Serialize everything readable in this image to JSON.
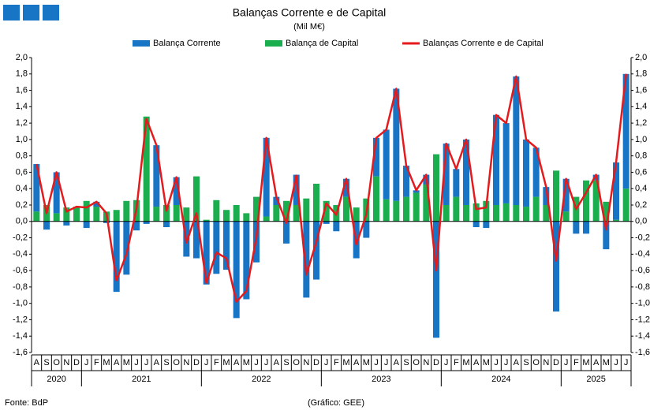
{
  "chart_data": {
    "type": "bar",
    "title": "Balanças Corrente e de Capital",
    "subtitle": "(Mil M€)",
    "source": "Fonte: BdP",
    "credit": "(Gráfico: GEE)",
    "categories": [
      "A",
      "S",
      "O",
      "N",
      "D",
      "J",
      "F",
      "M",
      "A",
      "M",
      "J",
      "J",
      "A",
      "S",
      "O",
      "N",
      "D",
      "J",
      "F",
      "M",
      "A",
      "M",
      "J",
      "J",
      "A",
      "S",
      "O",
      "N",
      "D",
      "J",
      "F",
      "M",
      "A",
      "M",
      "J",
      "J",
      "A",
      "S",
      "O",
      "N",
      "D",
      "J",
      "F",
      "M",
      "A",
      "M",
      "J",
      "J",
      "A",
      "S",
      "O",
      "N",
      "D",
      "J",
      "F",
      "M",
      "A",
      "M",
      "J",
      "J"
    ],
    "year_labels": [
      "2020",
      "2021",
      "2022",
      "2023",
      "2024",
      "2025"
    ],
    "series": [
      {
        "name": "Balança Corrente",
        "color": "#1874c4",
        "type": "bar",
        "values": [
          0.58,
          -0.1,
          0.5,
          -0.05,
          0.01,
          -0.08,
          0.06,
          -0.02,
          -0.86,
          -0.65,
          -0.11,
          -0.03,
          0.75,
          -0.07,
          0.34,
          -0.43,
          -0.45,
          -0.77,
          -0.64,
          -0.59,
          -1.18,
          -0.95,
          -0.5,
          0.96,
          0.1,
          -0.27,
          0.37,
          -0.93,
          -0.71,
          -0.03,
          -0.12,
          0.22,
          -0.45,
          -0.2,
          0.47,
          0.85,
          1.37,
          0.38,
          0.03,
          0.12,
          -1.42,
          0.75,
          0.34,
          0.8,
          -0.07,
          -0.08,
          1.1,
          0.98,
          1.57,
          0.82,
          0.6,
          0.22,
          -1.1,
          0.4,
          -0.15,
          -0.15,
          0.07,
          -0.34,
          0.7,
          1.4
        ]
      },
      {
        "name": "Balança de Capital",
        "color": "#1aae4e",
        "type": "bar",
        "values": [
          0.12,
          0.2,
          0.1,
          0.17,
          0.17,
          0.25,
          0.18,
          0.12,
          0.14,
          0.25,
          0.26,
          1.28,
          0.18,
          0.2,
          0.2,
          0.17,
          0.55,
          0.02,
          0.26,
          0.14,
          0.2,
          0.1,
          0.3,
          0.06,
          0.2,
          0.25,
          0.2,
          0.28,
          0.46,
          0.25,
          0.2,
          0.3,
          0.17,
          0.28,
          0.55,
          0.27,
          0.25,
          0.3,
          0.35,
          0.45,
          0.82,
          0.2,
          0.3,
          0.2,
          0.22,
          0.25,
          0.2,
          0.22,
          0.2,
          0.18,
          0.3,
          0.2,
          0.62,
          0.12,
          0.3,
          0.5,
          0.5,
          0.24,
          0.02,
          0.4
        ]
      },
      {
        "name": "Balanças Corrente e de Capital",
        "color": "#e41a1c",
        "type": "line",
        "values": [
          0.7,
          0.1,
          0.6,
          0.12,
          0.18,
          0.17,
          0.24,
          0.1,
          -0.72,
          -0.4,
          0.15,
          1.25,
          0.93,
          0.13,
          0.54,
          -0.26,
          0.1,
          -0.75,
          -0.38,
          -0.45,
          -0.98,
          -0.85,
          -0.2,
          1.02,
          0.3,
          -0.02,
          0.56,
          -0.65,
          -0.25,
          0.22,
          0.08,
          0.52,
          -0.28,
          0.08,
          1.02,
          1.12,
          1.62,
          0.68,
          0.38,
          0.57,
          -0.6,
          0.95,
          0.64,
          1.0,
          0.15,
          0.17,
          1.3,
          1.2,
          1.77,
          1.0,
          0.9,
          0.42,
          -0.48,
          0.52,
          0.15,
          0.35,
          0.57,
          -0.1,
          0.72,
          1.8
        ]
      }
    ],
    "ylim": [
      -1.6,
      2.0
    ],
    "yticks": [
      {
        "value": -1.6,
        "label": "-1,6"
      },
      {
        "value": -1.4,
        "label": "-1,4"
      },
      {
        "value": -1.2,
        "label": "-1,2"
      },
      {
        "value": -1.0,
        "label": "-1,0"
      },
      {
        "value": -0.8,
        "label": "-0,8"
      },
      {
        "value": -0.6,
        "label": "-0,6"
      },
      {
        "value": -0.4,
        "label": "-0,4"
      },
      {
        "value": -0.2,
        "label": "-0,2"
      },
      {
        "value": 0,
        "label": "0,0"
      },
      {
        "value": 0.2,
        "label": "0,2"
      },
      {
        "value": 0.4,
        "label": "0,4"
      },
      {
        "value": 0.6,
        "label": "0,6"
      },
      {
        "value": 0.8,
        "label": "0,8"
      },
      {
        "value": 1.0,
        "label": "1,0"
      },
      {
        "value": 1.2,
        "label": "1,2"
      },
      {
        "value": 1.4,
        "label": "1,4"
      },
      {
        "value": 1.6,
        "label": "1,6"
      },
      {
        "value": 1.8,
        "label": "1,8"
      },
      {
        "value": 2.0,
        "label": "2,0"
      }
    ],
    "legend": "top"
  }
}
